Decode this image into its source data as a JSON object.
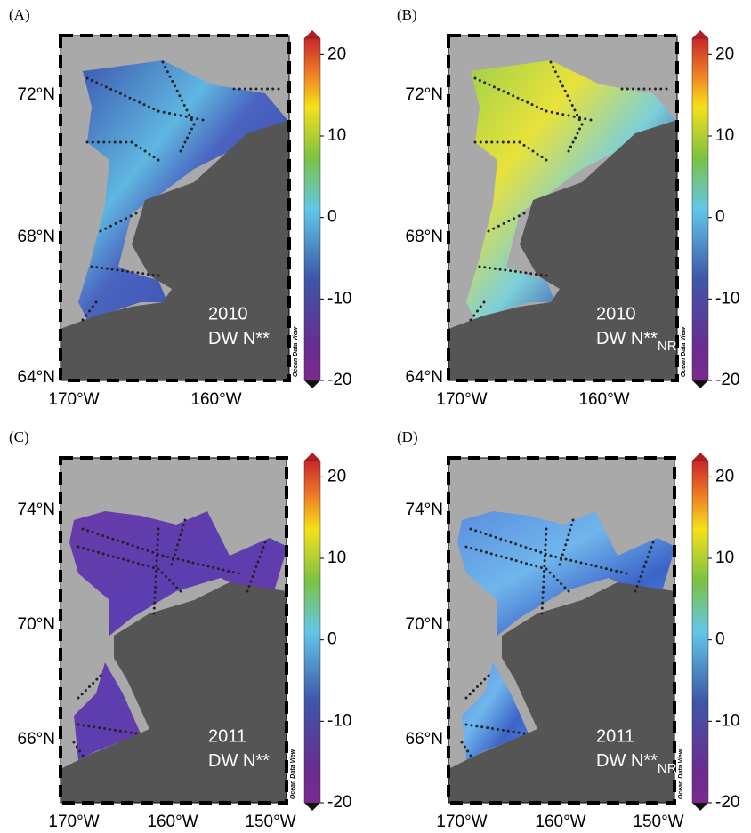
{
  "panels": [
    {
      "label": "(A)",
      "latitude_labels": [
        "72°N",
        "68°N",
        "64°N"
      ],
      "longitude_labels": [
        "170°W",
        "160°W"
      ],
      "year": "2010",
      "variable": "DW N**",
      "watermark": "Ocean Data View",
      "colorbar": {
        "range": [
          -20,
          22
        ],
        "ticks": [
          -20,
          -10,
          0,
          10,
          20
        ]
      }
    },
    {
      "label": "(B)",
      "latitude_labels": [
        "72°N",
        "68°N",
        "64°N"
      ],
      "longitude_labels": [
        "170°W",
        "160°W"
      ],
      "year": "2010",
      "variable": "DW N**",
      "variable_subscript": "NR",
      "watermark": "Ocean Data View",
      "colorbar": {
        "range": [
          -20,
          22
        ],
        "ticks": [
          -20,
          -10,
          0,
          10,
          20
        ]
      }
    },
    {
      "label": "(C)",
      "latitude_labels": [
        "74°N",
        "70°N",
        "66°N"
      ],
      "longitude_labels": [
        "170°W",
        "160°W",
        "150°W"
      ],
      "year": "2011",
      "variable": "DW N**",
      "watermark": "Ocean Data View",
      "colorbar": {
        "range": [
          -20,
          22
        ],
        "ticks": [
          -20,
          -10,
          0,
          10,
          20
        ]
      }
    },
    {
      "label": "(D)",
      "latitude_labels": [
        "74°N",
        "70°N",
        "66°N"
      ],
      "longitude_labels": [
        "170°W",
        "160°W",
        "150°W"
      ],
      "year": "2011",
      "variable": "DW N**",
      "variable_subscript": "NR",
      "watermark": "Ocean Data View",
      "colorbar": {
        "range": [
          -20,
          22
        ],
        "ticks": [
          -20,
          -10,
          0,
          10,
          20
        ]
      }
    }
  ]
}
